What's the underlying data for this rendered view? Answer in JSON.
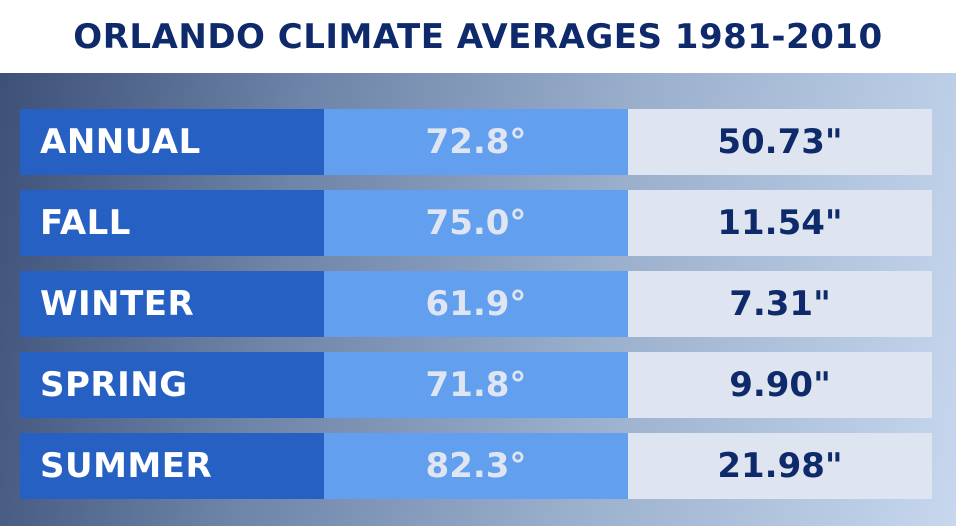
{
  "header": {
    "title": "ORLANDO CLIMATE AVERAGES 1981-2010"
  },
  "chart_data": {
    "type": "table",
    "title": "ORLANDO CLIMATE AVERAGES 1981-2010",
    "rows": [
      {
        "season": "ANNUAL",
        "temp": "72.8°",
        "precip": "50.73\""
      },
      {
        "season": "FALL",
        "temp": "75.0°",
        "precip": "11.54\""
      },
      {
        "season": "WINTER",
        "temp": "61.9°",
        "precip": "7.31\""
      },
      {
        "season": "SPRING",
        "temp": "71.8°",
        "precip": "9.90\""
      },
      {
        "season": "SUMMER",
        "temp": "82.3°",
        "precip": "21.98\""
      }
    ]
  },
  "colors": {
    "title": "#0e2a6b",
    "season_cell": "#2660c2",
    "temp_cell": "#629fee",
    "precip_cell": "#dfe5f0"
  }
}
